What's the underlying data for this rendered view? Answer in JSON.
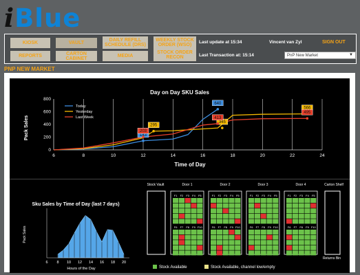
{
  "logo": {
    "prefix": "i",
    "word": "Blue"
  },
  "nav": {
    "kiosk": "KIOSK",
    "vault": "VAULT",
    "daily_refill": "DAILY REFILL SCHEDULE (DRS)",
    "weekly_stock": "WEEKLY STOCK ORDER (WSO)",
    "reports": "REPORTS",
    "carton_cabinet": "CARTON CABINET",
    "media": "MEDIA",
    "stock_order_recon": "STOCK ORDER RECON",
    "last_update": "Last update at 15:34",
    "last_transaction": "Last Transaction at: 15:14",
    "user": "Vincent van Zyl",
    "sign_out": "SIGN OUT",
    "store_select": "PnP New Market"
  },
  "page_title": "PNP NEW MARKET",
  "colors": {
    "accent": "#f5a316",
    "brand_blue": "#0e83d6",
    "today": "#3d8ee0",
    "yesterday": "#f5b800",
    "last_week": "#e8402a",
    "available": "#6cc24a",
    "low": "#e03030",
    "empty": "#777777",
    "shelf_white": "#ffffff"
  },
  "chart_data": [
    {
      "type": "line",
      "title": "Day on Day SKU Sales",
      "xlabel": "Time of Day",
      "ylabel": "Pack Sales",
      "xlim": [
        6,
        24
      ],
      "ylim": [
        0,
        800
      ],
      "xticks": [
        6,
        8,
        10,
        12,
        14,
        16,
        18,
        20,
        22,
        24
      ],
      "yticks": [
        0,
        200,
        400,
        600,
        800
      ],
      "grid": "vertical",
      "legend": "top-left",
      "series": [
        {
          "name": "Today",
          "x": [
            6,
            8,
            10,
            12,
            14,
            15,
            16,
            17
          ],
          "y": [
            0,
            15,
            50,
            143,
            170,
            240,
            480,
            640
          ],
          "label": {
            "x": 12,
            "y": 143,
            "text": "143"
          },
          "end_label": {
            "x": 17,
            "y": 640,
            "text": "640"
          }
        },
        {
          "name": "Yesterday",
          "x": [
            6,
            8,
            10,
            12,
            12.7,
            14,
            16,
            17,
            18,
            20,
            23
          ],
          "y": [
            0,
            20,
            80,
            190,
            295,
            300,
            330,
            345,
            545,
            560,
            566
          ],
          "label": {
            "x": 12.7,
            "y": 295,
            "text": "295"
          },
          "mid_label": {
            "x": 17.3,
            "y": 345,
            "text": "345"
          },
          "end_label": {
            "x": 23,
            "y": 566,
            "text": "566"
          }
        },
        {
          "name": "Last Week",
          "x": [
            6,
            8,
            10,
            12,
            14,
            16,
            17,
            18,
            20,
            23
          ],
          "y": [
            0,
            30,
            110,
            203,
            250,
            390,
            413,
            470,
            490,
            495
          ],
          "label": {
            "x": 12,
            "y": 203,
            "text": "203"
          },
          "mid_label": {
            "x": 17,
            "y": 413,
            "text": "413"
          },
          "end_label": {
            "x": 23,
            "y": 495,
            "text": "495"
          }
        }
      ]
    },
    {
      "type": "area",
      "title": "Sku Sales by Time of Day (last 7 days)",
      "xlabel": "Hours of the Day",
      "ylabel": "Pack Sales",
      "xticks": [
        6,
        8,
        10,
        12,
        14,
        16,
        18,
        20
      ],
      "xlim": [
        6,
        21
      ],
      "ylim": [
        0,
        140
      ],
      "x": [
        8,
        9,
        10,
        11,
        12,
        13,
        14,
        15,
        16,
        17,
        18,
        19,
        20
      ],
      "y": [
        10,
        22,
        40,
        70,
        98,
        120,
        108,
        75,
        45,
        80,
        78,
        45,
        10
      ]
    }
  ],
  "vault": {
    "stock_vault_label": "Stock Vault",
    "carton_shelf_label": "Carton Shelf",
    "returns_bin_label": "Returns Bin",
    "doors": [
      {
        "label": "Door 1",
        "cells": "GGRGGGGGRGGGGGGGRGGGGGGGRGGGGGGGGG GGGGGGRGGGGRGGGGGGGRGGGGGGGGGRGGGG"
      },
      {
        "label": "Door 2",
        "cells": "GGGGGRGGGGGGRGGGGGGGGGGGRGGGGGGGGG GGGRGGGGGRGGGGGGRGGGGRGGGGGGGGRGGG"
      },
      {
        "label": "Door 3",
        "cells": "GGGGGGRGGGGGGGGGGRGGGGGGGGGGRGGGGG GGGGGGGGRGGGGGGRGGGGGGGGGRGGGGGRGG"
      },
      {
        "label": "Door 4",
        "cells": "GGGGGGGGGRGGGGGGGGGGRGGGGGGGGGGGRG GGGGGRGGGGGGGGGRGGGGGGGGGGRGGGGGGG"
      }
    ],
    "slot_labels": [
      "F1",
      "F2",
      "F3",
      "F4",
      "F5"
    ],
    "slot_labels_bottom": [
      "F6",
      "F7",
      "F8",
      "F9",
      "F10"
    ],
    "legend_available": "Stock Available",
    "legend_low": "Stock Available, channel low/empty"
  }
}
